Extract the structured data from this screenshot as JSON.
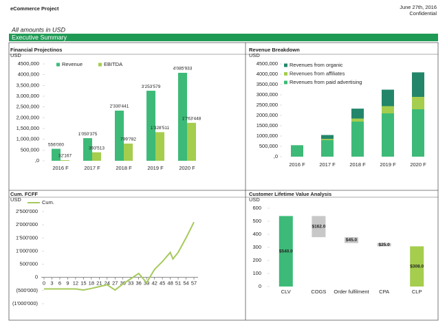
{
  "header": {
    "project": "eCommerce Project",
    "date": "June 27th, 2016",
    "confidential": "Confidential",
    "note": "All amounts in USD",
    "section": "Executive Summary"
  },
  "chart_data": [
    {
      "type": "bar",
      "title": "Financial Projectinos",
      "unit": "USD",
      "legend": "top-left",
      "categories": [
        "2016 F",
        "2017 F",
        "2018 F",
        "2019 F",
        "2020 F"
      ],
      "series": [
        {
          "name": "Revenue",
          "color": "#3dba78",
          "values": [
            556000,
            1050375,
            2330441,
            3253579,
            4085933
          ],
          "value_labels": [
            "556'000",
            "1'050'375",
            "2'330'441",
            "3'253'579",
            "4'085'933"
          ]
        },
        {
          "name": "EBITDA",
          "color": "#a5cd4e",
          "values": [
            32167,
            393513,
            799782,
            1328511,
            1763448
          ],
          "value_labels": [
            "32'167",
            "393'513",
            "799'782",
            "1'328'511",
            "1'763'448"
          ]
        }
      ],
      "ylim": [
        0,
        4500000
      ],
      "yticks": [
        {
          "value": 0,
          "label": ",0"
        },
        {
          "value": 500000,
          "label": "500,000"
        },
        {
          "value": 1000000,
          "label": "1,000,000"
        },
        {
          "value": 1500000,
          "label": "1,500,000"
        },
        {
          "value": 2000000,
          "label": "2,000,000"
        },
        {
          "value": 2500000,
          "label": "2,500,000"
        },
        {
          "value": 3000000,
          "label": "3,000,000"
        },
        {
          "value": 3500000,
          "label": "3,500,000"
        },
        {
          "value": 4000000,
          "label": "4000,000"
        },
        {
          "value": 4500000,
          "label": "4500,000"
        }
      ]
    },
    {
      "type": "stacked_bar",
      "title": "Revenue Breakdown",
      "unit": "USD",
      "legend": "top-left",
      "categories": [
        "2016 F",
        "2017 F",
        "2018 F",
        "2019 F",
        "2020 F"
      ],
      "series": [
        {
          "name": "Revenues from organic",
          "color": "#23866a",
          "values": [
            0,
            190000,
            480000,
            800000,
            1190000
          ]
        },
        {
          "name": "Revenues from affiliates",
          "color": "#a5cd4e",
          "values": [
            0,
            60000,
            150000,
            350000,
            600000
          ]
        },
        {
          "name": "Revenues from paid advertising",
          "color": "#3dba78",
          "values": [
            556000,
            800000,
            1700000,
            2100000,
            2300000
          ]
        }
      ],
      "ylim": [
        0,
        4500000
      ],
      "yticks": [
        {
          "value": 0,
          "label": ",0"
        },
        {
          "value": 500000,
          "label": "500,000"
        },
        {
          "value": 1000000,
          "label": "1000,000"
        },
        {
          "value": 1500000,
          "label": "1500,000"
        },
        {
          "value": 2000000,
          "label": "2000,000"
        },
        {
          "value": 2500000,
          "label": "2500,000"
        },
        {
          "value": 3000000,
          "label": "3000,000"
        },
        {
          "value": 3500000,
          "label": "3500,000"
        },
        {
          "value": 4000000,
          "label": "4000,000"
        },
        {
          "value": 4500000,
          "label": "4500,000"
        }
      ]
    },
    {
      "type": "line",
      "title": "Cum. FCFF",
      "unit": "USD",
      "legend": "top-left",
      "x": [
        0,
        3,
        6,
        9,
        12,
        15,
        18,
        21,
        24,
        27,
        30,
        33,
        36,
        39,
        42,
        45,
        48,
        49,
        51,
        54,
        57
      ],
      "series": [
        {
          "name": "Cum.",
          "color": "#a5c95a",
          "values": [
            -440000,
            -440000,
            -440000,
            -440000,
            -440000,
            -480000,
            -420000,
            -350000,
            -280000,
            -480000,
            -250000,
            -50000,
            150000,
            -200000,
            300000,
            600000,
            950000,
            700000,
            950000,
            1500000,
            2100000
          ]
        }
      ],
      "xlim": [
        0,
        57
      ],
      "xticks": [
        0,
        3,
        6,
        9,
        12,
        15,
        18,
        21,
        24,
        27,
        30,
        33,
        36,
        39,
        42,
        45,
        48,
        51,
        54,
        57
      ],
      "ylim": [
        -1000000,
        2500000
      ],
      "yticks": [
        {
          "value": -1000000,
          "label": "(1'000'000)"
        },
        {
          "value": -500000,
          "label": "(500'000)"
        },
        0,
        {
          "value": 500000,
          "label": "500'000"
        },
        {
          "value": 1000000,
          "label": "1'000'000"
        },
        {
          "value": 1500000,
          "label": "1'500'000"
        },
        {
          "value": 2000000,
          "label": "2'000'000"
        },
        {
          "value": 2500000,
          "label": "2'500'000"
        }
      ]
    },
    {
      "type": "waterfall",
      "title": "Customer Lifetime Value Analysis",
      "unit": "USD",
      "categories": [
        "CLV",
        "COGS",
        "Order fulfilment",
        "CPA",
        "CLP"
      ],
      "values": [
        540,
        162,
        45,
        25,
        308
      ],
      "value_labels": [
        "$540.0",
        "$162.0",
        "$45.0",
        "$25.0",
        "$308.0"
      ],
      "measures": [
        "absolute",
        "decrease",
        "decrease",
        "decrease",
        "total"
      ],
      "colors": [
        "#3dba78",
        "#c8c8c8",
        "#c8c8c8",
        "#c8c8c8",
        "#a5cd4e"
      ],
      "ylim": [
        0,
        600
      ],
      "yticks": [
        0,
        100,
        200,
        300,
        400,
        500,
        600
      ]
    }
  ]
}
